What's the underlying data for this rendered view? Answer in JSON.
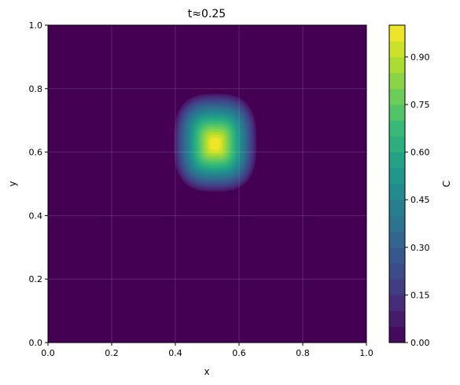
{
  "chart_data": {
    "type": "heatmap",
    "subtype": "filled-contour",
    "title": "t≈0.25",
    "xlabel": "x",
    "ylabel": "y",
    "xlim": [
      0.0,
      1.0
    ],
    "ylim": [
      0.0,
      1.0
    ],
    "x_ticks": [
      0.0,
      0.2,
      0.4,
      0.6,
      0.8,
      1.0
    ],
    "y_ticks": [
      0.0,
      0.2,
      0.4,
      0.6,
      0.8,
      1.0
    ],
    "x_tick_labels": [
      "0.0",
      "0.2",
      "0.4",
      "0.6",
      "0.8",
      "1.0"
    ],
    "y_tick_labels": [
      "0.0",
      "0.2",
      "0.4",
      "0.6",
      "0.8",
      "1.0"
    ],
    "grid": true,
    "colormap": "viridis",
    "colorbar": {
      "label": "C",
      "range": [
        0.0,
        1.0
      ],
      "levels": 20,
      "ticks": [
        0.0,
        0.15,
        0.3,
        0.45,
        0.6,
        0.75,
        0.9
      ],
      "tick_labels": [
        "0.00",
        "0.15",
        "0.30",
        "0.45",
        "0.60",
        "0.75",
        "0.90"
      ]
    },
    "field": {
      "description_of_values": "concentration C over the unit square",
      "peak_value": 1.0,
      "peak_center": [
        0.525,
        0.625
      ],
      "extent_x": [
        0.39,
        0.66
      ],
      "extent_y": [
        0.47,
        0.79
      ]
    }
  }
}
